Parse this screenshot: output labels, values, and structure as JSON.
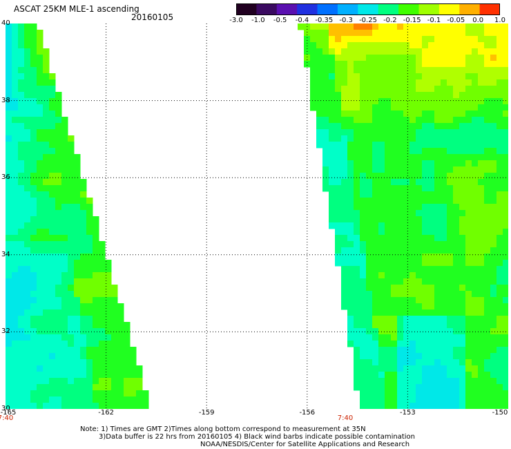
{
  "header": {
    "title": "ASCAT 25KM MLE-1 ascending",
    "date": "20160105"
  },
  "colorbar": {
    "labels": [
      "-3.0",
      "-1.0",
      "-0.5",
      "-0.4",
      "-0.35",
      "-0.3",
      "-0.25",
      "-0.2",
      "-0.15",
      "-0.1",
      "-0.05",
      "0.0",
      "1.0"
    ],
    "colors": [
      "#200020",
      "#3a0a60",
      "#5a10b0",
      "#2030e0",
      "#0070ff",
      "#00b0ff",
      "#00e8e8",
      "#00ff80",
      "#40ff00",
      "#a0ff00",
      "#ffff00",
      "#ffb000",
      "#ff3000"
    ]
  },
  "axes": {
    "lat_labels": [
      "40",
      "38",
      "36",
      "34",
      "32",
      "30"
    ],
    "lon_labels": [
      "-165",
      "-162",
      "-159",
      "-156",
      "-153",
      "-150"
    ],
    "lat_range": [
      30,
      40
    ],
    "lon_range": [
      -165,
      -150
    ],
    "grid": true
  },
  "times": [
    "7:40",
    "7:40"
  ],
  "notes": [
    "Note: 1) Times are GMT 2)Times along bottom correspond to measurement at 35N",
    "3)Data buffer is 22 hrs from 20160105 4) Black wind barbs indicate possible contamination",
    "NOAA/NESDIS/Center for Satellite Applications and Research"
  ],
  "swaths": [
    {
      "name": "west",
      "edge_top_lon": -164.0,
      "edge_bottom_lon": -160.6,
      "dominant": "cyan-green"
    },
    {
      "name": "east",
      "edge_top_lon": -156.3,
      "edge_bottom_lon": -154.5,
      "dominant": "green-yellow"
    }
  ]
}
